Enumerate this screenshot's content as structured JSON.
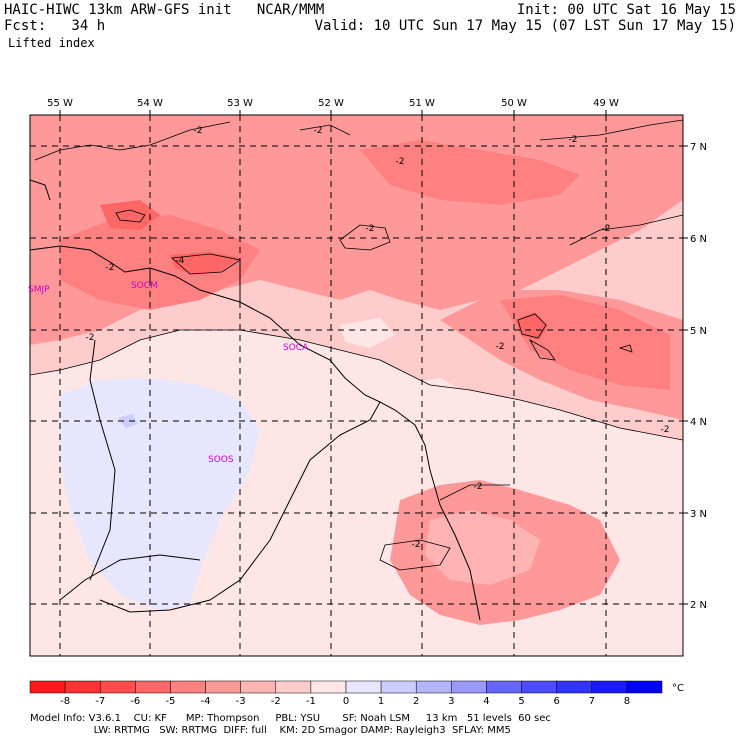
{
  "header": {
    "model_line": "HAIC-HIWC 13km ARW-GFS init   NCAR/MMM",
    "fcst_label": "Fcst:   34 h",
    "field": "Lifted index",
    "init": "Init: 00 UTC Sat 16 May 15",
    "valid": "Valid: 10 UTC Sun 17 May 15 (07 LST Sun 17 May 15)"
  },
  "map": {
    "lon_labels": [
      "55 W",
      "54 W",
      "53 W",
      "52 W",
      "51 W",
      "50 W",
      "49 W"
    ],
    "lat_labels": [
      "7 N",
      "6 N",
      "5 N",
      "4 N",
      "3 N",
      "2 N"
    ],
    "stations": [
      "SMJP",
      "SOCM",
      "SOCA",
      "SOOS"
    ],
    "contour_labels": [
      "-2",
      "-2",
      "-2",
      "-2",
      "-2",
      "-2",
      "-4",
      "-2",
      "-2",
      "-2",
      "-2",
      "-2",
      "-2"
    ]
  },
  "colorbar": {
    "ticks": [
      "-8",
      "-7",
      "-6",
      "-5",
      "-4",
      "-3",
      "-2",
      "-1",
      "0",
      "1",
      "2",
      "3",
      "4",
      "5",
      "6",
      "7",
      "8"
    ],
    "unit": "°C",
    "colors": [
      "#ff1a1a",
      "#ff3333",
      "#ff4d4d",
      "#ff6666",
      "#ff8080",
      "#ff9999",
      "#ffb3b3",
      "#ffcccc",
      "#ffe6e6",
      "#e6e6ff",
      "#ccccff",
      "#b3b3ff",
      "#9999ff",
      "#6666ff",
      "#4d4dff",
      "#3333ff",
      "#1a1aff",
      "#0000ff"
    ]
  },
  "model_info": {
    "line1": "Model Info: V3.6.1    CU: KF      MP: Thompson     PBL: YSU       SF: Noah LSM     13 km   51 levels  60 sec",
    "line2": "                    LW: RRTMG   SW: RRTMG  DIFF: full    KM: 2D Smagor DAMP: Rayleigh3  SFLAY: MM5"
  }
}
